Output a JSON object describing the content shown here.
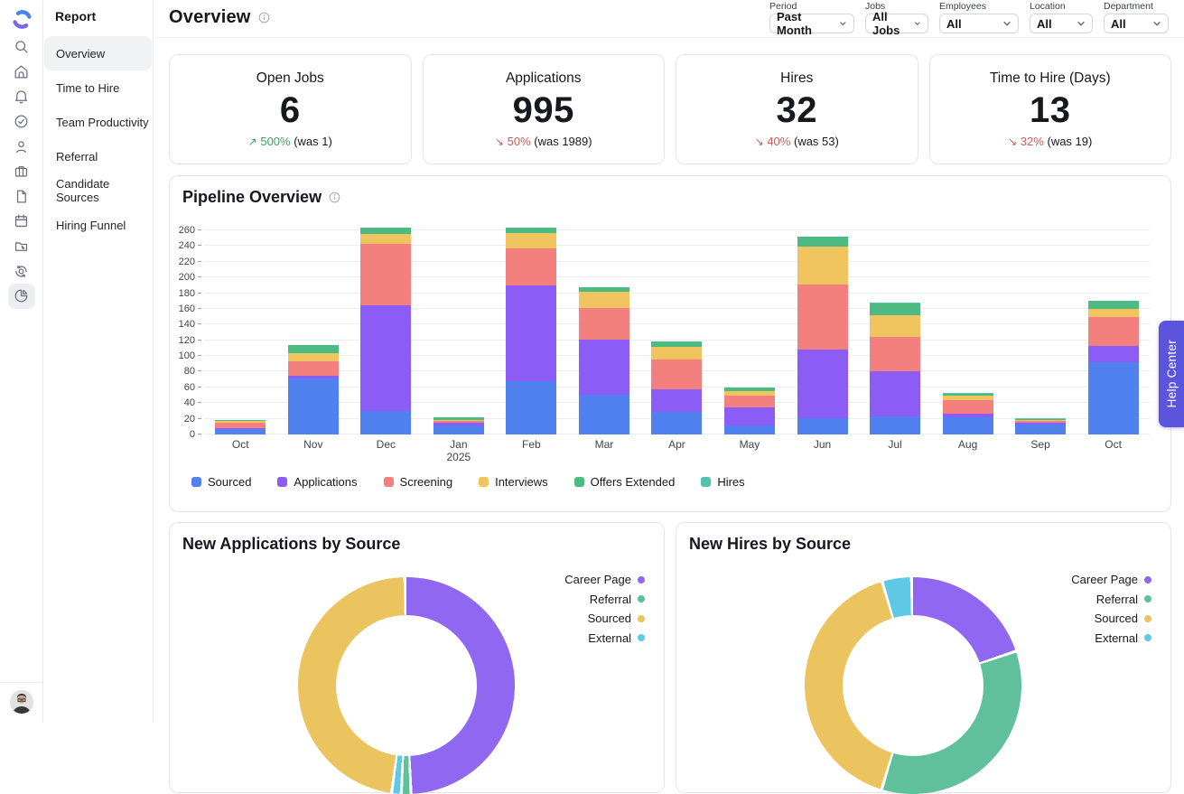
{
  "sidebar": {
    "icons": [
      {
        "name": "search"
      },
      {
        "name": "home"
      },
      {
        "name": "notifications"
      },
      {
        "name": "tasks"
      },
      {
        "name": "candidates"
      },
      {
        "name": "jobs"
      },
      {
        "name": "documents"
      },
      {
        "name": "calendar"
      },
      {
        "name": "review"
      },
      {
        "name": "automations"
      },
      {
        "name": "reports",
        "active": true
      }
    ]
  },
  "menu": {
    "title": "Report",
    "items": [
      {
        "label": "Overview",
        "selected": true
      },
      {
        "label": "Time to Hire"
      },
      {
        "label": "Team Productivity"
      },
      {
        "label": "Referral"
      },
      {
        "label": "Candidate Sources"
      },
      {
        "label": "Hiring Funnel"
      }
    ]
  },
  "header": {
    "title": "Overview",
    "filters": [
      {
        "label": "Period",
        "value": "Past Month"
      },
      {
        "label": "Jobs",
        "value": "All Jobs"
      },
      {
        "label": "Employees",
        "value": "All"
      },
      {
        "label": "Location",
        "value": "All"
      },
      {
        "label": "Department",
        "value": "All"
      }
    ]
  },
  "kpis": [
    {
      "title": "Open Jobs",
      "value": "6",
      "direction": "up",
      "pct": "500%",
      "was": "(was 1)"
    },
    {
      "title": "Applications",
      "value": "995",
      "direction": "down",
      "pct": "50%",
      "was": "(was 1989)"
    },
    {
      "title": "Hires",
      "value": "32",
      "direction": "down",
      "pct": "40%",
      "was": "(was 53)"
    },
    {
      "title": "Time to Hire (Days)",
      "value": "13",
      "direction": "down",
      "pct": "32%",
      "was": "(was 19)"
    }
  ],
  "help_center_label": "Help Center",
  "colors": {
    "trend_up": "#3da262",
    "trend_down": "#cf5b56",
    "accent": "#5b54dd"
  },
  "chart_data": [
    {
      "type": "bar",
      "stacked": true,
      "title": "Pipeline Overview",
      "categories": [
        {
          "label": "Oct"
        },
        {
          "label": "Nov"
        },
        {
          "label": "Dec"
        },
        {
          "label": "Jan",
          "sub": "2025"
        },
        {
          "label": "Feb"
        },
        {
          "label": "Mar"
        },
        {
          "label": "Apr"
        },
        {
          "label": "May"
        },
        {
          "label": "Jun"
        },
        {
          "label": "Jul"
        },
        {
          "label": "Aug"
        },
        {
          "label": "Sep"
        },
        {
          "label": "Oct"
        }
      ],
      "series": [
        {
          "name": "Sourced",
          "color": "#5081ee",
          "values": [
            7,
            71,
            30,
            12,
            68,
            51,
            29,
            11,
            21,
            23,
            22,
            13,
            92
          ]
        },
        {
          "name": "Applications",
          "color": "#8b5cf6",
          "values": [
            1,
            4,
            135,
            3,
            122,
            70,
            28,
            23,
            87,
            57,
            4,
            2,
            21
          ]
        },
        {
          "name": "Screening",
          "color": "#f47f7f",
          "values": [
            7,
            18,
            78,
            2,
            47,
            40,
            38,
            16,
            83,
            44,
            18,
            2,
            37
          ]
        },
        {
          "name": "Interviews",
          "color": "#f0c45f",
          "values": [
            2,
            11,
            13,
            2,
            20,
            21,
            17,
            5,
            48,
            28,
            6,
            1,
            10
          ]
        },
        {
          "name": "Offers Extended",
          "color": "#4dba83",
          "values": [
            1,
            10,
            8,
            3,
            7,
            5,
            6,
            5,
            13,
            15,
            2,
            2,
            10
          ]
        },
        {
          "name": "Hires",
          "color": "#52c2ad",
          "values": [
            0,
            0,
            0,
            0,
            0,
            0,
            0,
            0,
            0,
            1,
            1,
            1,
            0
          ]
        }
      ],
      "ylim": [
        0,
        260
      ],
      "ytick": 20,
      "grid": true,
      "legend_position": "bottom"
    },
    {
      "type": "pie",
      "title": "New Applications by Source",
      "segments": [
        {
          "label": "Career Page",
          "pct": 50,
          "color": "#9067f0"
        },
        {
          "label": "Referral",
          "pct": 1,
          "color": "#5fc09b"
        },
        {
          "label": "External",
          "pct": 1,
          "color": "#5ec8e5"
        },
        {
          "label": "Sourced",
          "pct": 48,
          "color": "#ecc45f"
        }
      ],
      "legend": [
        "Career Page",
        "Referral",
        "Sourced",
        "External"
      ]
    },
    {
      "type": "pie",
      "title": "New Hires by Source",
      "segments": [
        {
          "label": "Career Page",
          "pct": 20,
          "color": "#9067f0"
        },
        {
          "label": "Referral",
          "pct": 35,
          "color": "#5fc09b"
        },
        {
          "label": "Sourced",
          "pct": 41,
          "color": "#ecc45f"
        },
        {
          "label": "External",
          "pct": 4,
          "color": "#5ec8e5"
        }
      ],
      "legend": [
        "Career Page",
        "Referral",
        "Sourced",
        "External"
      ]
    }
  ]
}
